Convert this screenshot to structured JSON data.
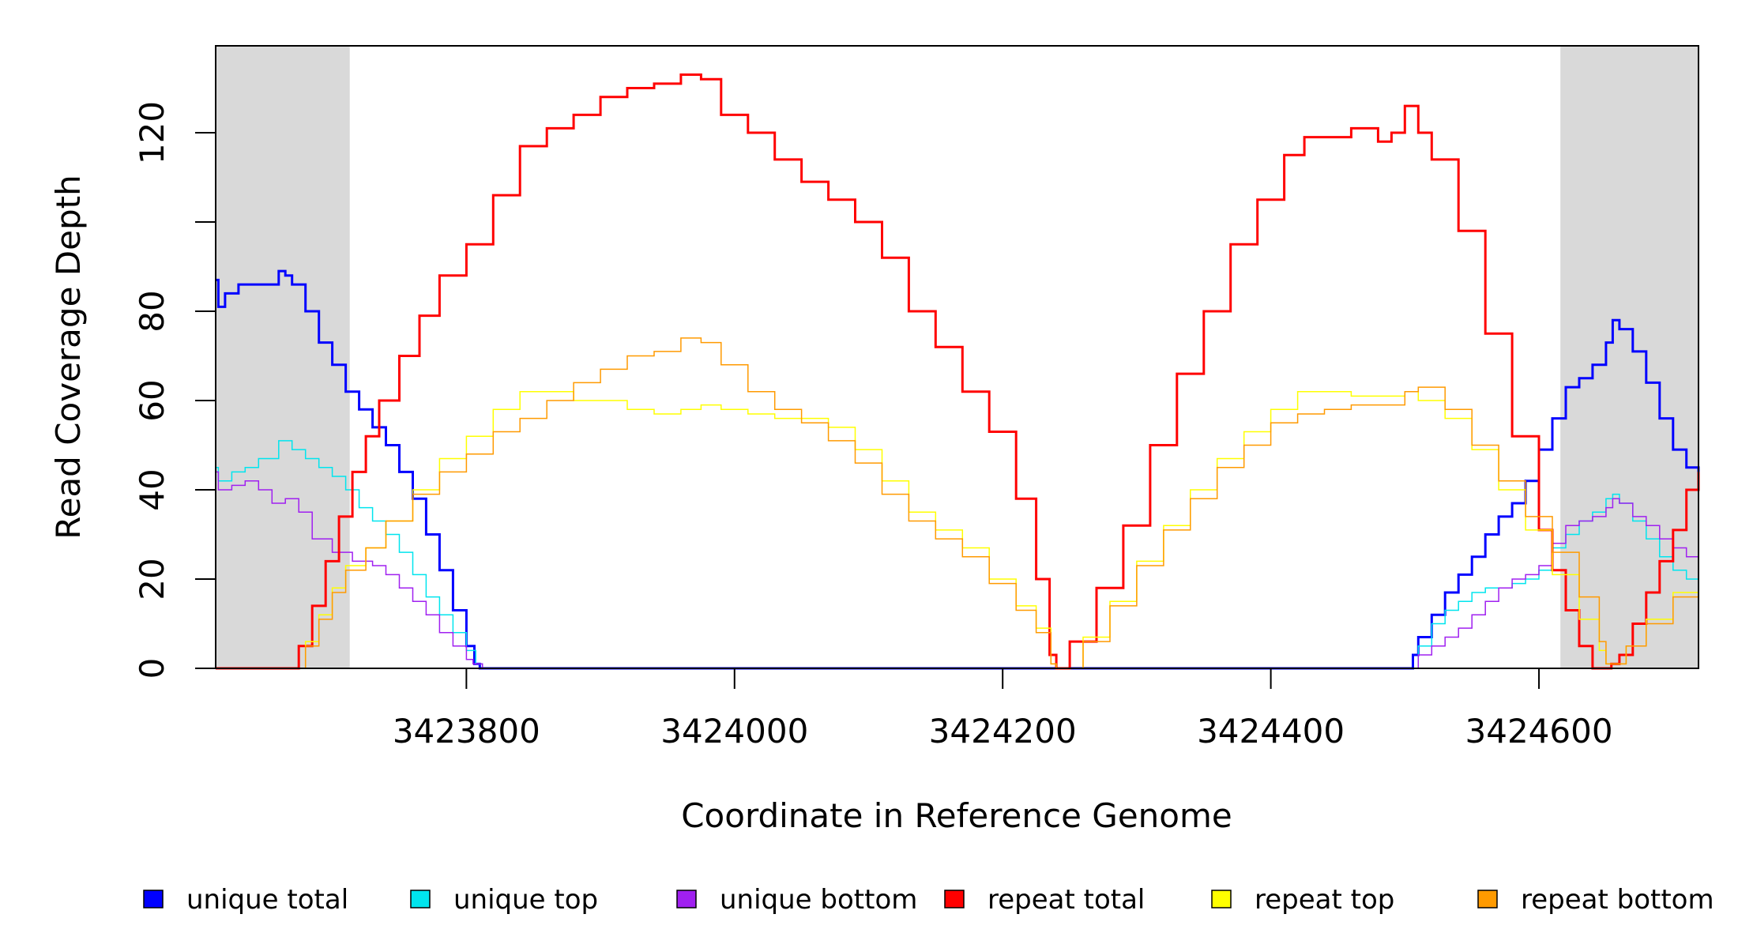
{
  "chart_data": {
    "type": "line",
    "title": "",
    "xlabel": "Coordinate in Reference Genome",
    "ylabel": "Read Coverage Depth",
    "xlim": [
      3423613,
      3424719
    ],
    "ylim": [
      0,
      139
    ],
    "x_ticks": [
      3423800,
      3424000,
      3424200,
      3424400,
      3424600
    ],
    "y_ticks": [
      0,
      20,
      40,
      60,
      80,
      100,
      120
    ],
    "y_tick_labels": [
      "0",
      "20",
      "40",
      "60",
      "80",
      "",
      "120"
    ],
    "shaded_regions": [
      [
        3423613,
        3423713
      ],
      [
        3424616,
        3424719
      ]
    ],
    "shade_color": "#d9d9d9",
    "legend_position": "bottom",
    "series": [
      {
        "name": "unique total",
        "color": "#0000ff",
        "width": 3,
        "x": [
          3423613,
          3423615,
          3423620,
          3423630,
          3423640,
          3423650,
          3423660,
          3423665,
          3423670,
          3423680,
          3423690,
          3423700,
          3423710,
          3423720,
          3423730,
          3423740,
          3423750,
          3423760,
          3423770,
          3423780,
          3423790,
          3423800,
          3423806,
          3423810,
          3424300,
          3424505,
          3424506,
          3424510,
          3424520,
          3424530,
          3424540,
          3424550,
          3424560,
          3424570,
          3424580,
          3424590,
          3424600,
          3424610,
          3424620,
          3424630,
          3424640,
          3424650,
          3424655,
          3424660,
          3424670,
          3424680,
          3424690,
          3424700,
          3424710,
          3424719
        ],
        "y": [
          87,
          81,
          84,
          86,
          86,
          86,
          89,
          88,
          86,
          80,
          73,
          68,
          62,
          58,
          54,
          50,
          44,
          38,
          30,
          22,
          13,
          5,
          1,
          0,
          0,
          0,
          3,
          7,
          12,
          17,
          21,
          25,
          30,
          34,
          37,
          42,
          49,
          56,
          63,
          65,
          68,
          73,
          78,
          76,
          71,
          64,
          56,
          49,
          45,
          42
        ]
      },
      {
        "name": "unique top",
        "color": "#00e5ee",
        "width": 1.5,
        "x": [
          3423613,
          3423615,
          3423625,
          3423635,
          3423645,
          3423660,
          3423670,
          3423680,
          3423690,
          3423700,
          3423710,
          3423720,
          3423730,
          3423740,
          3423750,
          3423760,
          3423770,
          3423780,
          3423790,
          3423800,
          3423807,
          3423812,
          3424300,
          3424505,
          3424510,
          3424520,
          3424530,
          3424540,
          3424550,
          3424560,
          3424570,
          3424580,
          3424590,
          3424600,
          3424610,
          3424620,
          3424630,
          3424640,
          3424650,
          3424655,
          3424660,
          3424670,
          3424680,
          3424690,
          3424700,
          3424710,
          3424719
        ],
        "y": [
          45,
          42,
          44,
          45,
          47,
          51,
          49,
          47,
          45,
          43,
          40,
          36,
          33,
          30,
          26,
          21,
          16,
          12,
          8,
          4,
          1,
          0,
          0,
          0,
          5,
          10,
          13,
          15,
          17,
          18,
          18,
          19,
          20,
          22,
          27,
          30,
          33,
          35,
          38,
          39,
          37,
          33,
          29,
          25,
          22,
          20,
          19
        ]
      },
      {
        "name": "unique bottom",
        "color": "#a020f0",
        "width": 1.5,
        "x": [
          3423613,
          3423615,
          3423625,
          3423635,
          3423645,
          3423655,
          3423665,
          3423675,
          3423685,
          3423700,
          3423715,
          3423730,
          3423740,
          3423750,
          3423760,
          3423770,
          3423780,
          3423790,
          3423800,
          3423805,
          3423812,
          3424300,
          3424505,
          3424510,
          3424520,
          3424530,
          3424540,
          3424550,
          3424560,
          3424570,
          3424580,
          3424590,
          3424600,
          3424610,
          3424620,
          3424630,
          3424640,
          3424650,
          3424655,
          3424660,
          3424670,
          3424680,
          3424690,
          3424700,
          3424710,
          3424719
        ],
        "y": [
          44,
          40,
          41,
          42,
          40,
          37,
          38,
          35,
          29,
          26,
          24,
          23,
          21,
          18,
          15,
          12,
          8,
          5,
          2,
          1,
          0,
          0,
          0,
          3,
          5,
          7,
          9,
          12,
          15,
          18,
          20,
          21,
          23,
          28,
          32,
          33,
          34,
          36,
          38,
          37,
          34,
          32,
          29,
          27,
          25,
          24
        ]
      },
      {
        "name": "repeat total",
        "color": "#ff0000",
        "width": 3,
        "x": [
          3423613,
          3423668,
          3423675,
          3423685,
          3423695,
          3423705,
          3423715,
          3423725,
          3423735,
          3423750,
          3423765,
          3423780,
          3423800,
          3423820,
          3423840,
          3423860,
          3423880,
          3423900,
          3423920,
          3423940,
          3423960,
          3423975,
          3423990,
          3424010,
          3424030,
          3424050,
          3424070,
          3424090,
          3424110,
          3424130,
          3424150,
          3424170,
          3424190,
          3424210,
          3424225,
          3424235,
          3424240,
          3424250,
          3424270,
          3424290,
          3424310,
          3424330,
          3424350,
          3424370,
          3424390,
          3424410,
          3424425,
          3424440,
          3424460,
          3424480,
          3424490,
          3424500,
          3424510,
          3424520,
          3424540,
          3424560,
          3424580,
          3424600,
          3424610,
          3424620,
          3424630,
          3424640,
          3424650,
          3424654,
          3424660,
          3424670,
          3424680,
          3424690,
          3424700,
          3424710,
          3424719
        ],
        "y": [
          0,
          0,
          5,
          14,
          24,
          34,
          44,
          52,
          60,
          70,
          79,
          88,
          95,
          106,
          117,
          121,
          124,
          128,
          130,
          131,
          133,
          132,
          124,
          120,
          114,
          109,
          105,
          100,
          92,
          80,
          72,
          62,
          53,
          38,
          20,
          3,
          0,
          6,
          18,
          32,
          50,
          66,
          80,
          95,
          105,
          115,
          119,
          119,
          121,
          118,
          120,
          126,
          120,
          114,
          98,
          75,
          52,
          31,
          22,
          13,
          5,
          0,
          0,
          1,
          3,
          10,
          17,
          24,
          31,
          40,
          44
        ]
      },
      {
        "name": "repeat top",
        "color": "#ffff00",
        "width": 1.5,
        "x": [
          3423613,
          3423668,
          3423680,
          3423690,
          3423700,
          3423710,
          3423725,
          3423740,
          3423760,
          3423780,
          3423800,
          3423820,
          3423840,
          3423860,
          3423880,
          3423900,
          3423920,
          3423940,
          3423960,
          3423975,
          3423990,
          3424010,
          3424030,
          3424050,
          3424070,
          3424090,
          3424110,
          3424130,
          3424150,
          3424170,
          3424190,
          3424210,
          3424225,
          3424236,
          3424240,
          3424260,
          3424280,
          3424300,
          3424320,
          3424340,
          3424360,
          3424380,
          3424400,
          3424420,
          3424440,
          3424460,
          3424480,
          3424490,
          3424500,
          3424510,
          3424530,
          3424550,
          3424570,
          3424590,
          3424610,
          3424630,
          3424645,
          3424650,
          3424655,
          3424665,
          3424680,
          3424700,
          3424719
        ],
        "y": [
          0,
          0,
          6,
          12,
          18,
          23,
          27,
          33,
          40,
          47,
          52,
          58,
          62,
          62,
          60,
          60,
          58,
          57,
          58,
          59,
          58,
          57,
          56,
          56,
          54,
          49,
          42,
          35,
          31,
          27,
          20,
          14,
          9,
          1,
          0,
          7,
          15,
          24,
          32,
          40,
          47,
          53,
          58,
          62,
          62,
          61,
          61,
          61,
          62,
          60,
          56,
          49,
          40,
          31,
          21,
          11,
          4,
          1,
          1,
          5,
          11,
          17,
          22
        ]
      },
      {
        "name": "repeat bottom",
        "color": "#ff9a00",
        "width": 1.5,
        "x": [
          3423613,
          3423668,
          3423680,
          3423690,
          3423700,
          3423710,
          3423725,
          3423740,
          3423760,
          3423780,
          3423800,
          3423820,
          3423840,
          3423860,
          3423880,
          3423900,
          3423920,
          3423940,
          3423960,
          3423975,
          3423990,
          3424010,
          3424030,
          3424050,
          3424070,
          3424090,
          3424110,
          3424130,
          3424150,
          3424170,
          3424190,
          3424210,
          3424225,
          3424236,
          3424240,
          3424260,
          3424280,
          3424300,
          3424320,
          3424340,
          3424360,
          3424380,
          3424400,
          3424420,
          3424440,
          3424460,
          3424480,
          3424500,
          3424510,
          3424530,
          3424550,
          3424570,
          3424590,
          3424610,
          3424630,
          3424645,
          3424650,
          3424655,
          3424665,
          3424680,
          3424700,
          3424719
        ],
        "y": [
          0,
          0,
          5,
          11,
          17,
          22,
          27,
          33,
          39,
          44,
          48,
          53,
          56,
          60,
          64,
          67,
          70,
          71,
          74,
          73,
          68,
          62,
          58,
          55,
          51,
          46,
          39,
          33,
          29,
          25,
          19,
          13,
          8,
          1,
          0,
          6,
          14,
          23,
          31,
          38,
          45,
          50,
          55,
          57,
          58,
          59,
          59,
          62,
          63,
          58,
          50,
          42,
          34,
          26,
          16,
          6,
          1,
          1,
          5,
          10,
          16,
          20
        ]
      }
    ]
  }
}
